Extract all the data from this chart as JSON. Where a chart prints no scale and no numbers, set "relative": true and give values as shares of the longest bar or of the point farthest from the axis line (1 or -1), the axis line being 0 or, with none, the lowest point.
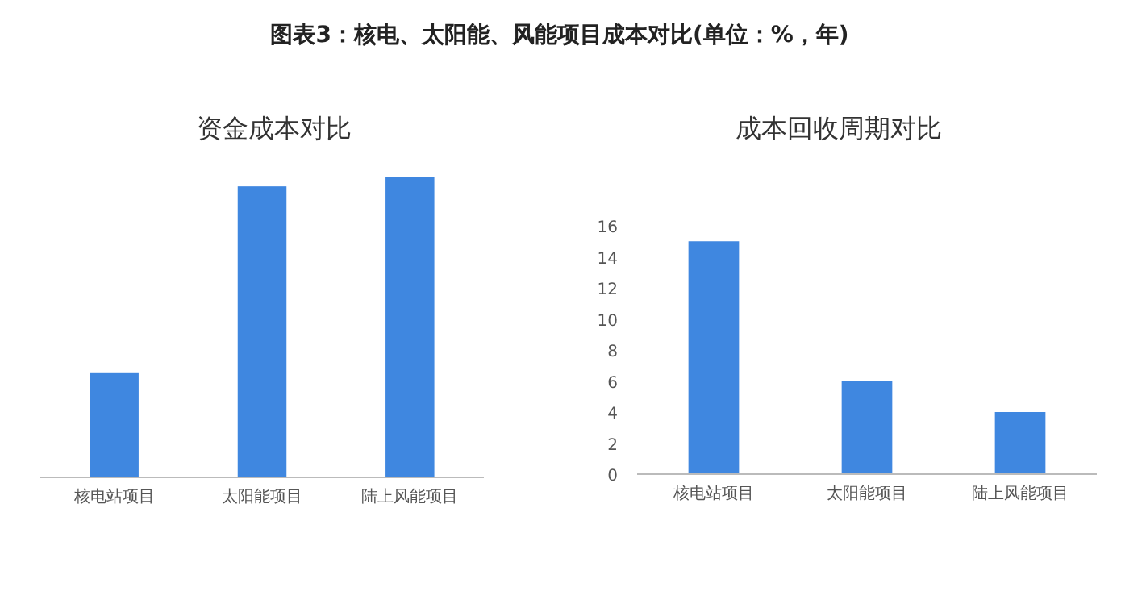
{
  "chart_data": [
    {
      "type": "bar",
      "title": "资金成本对比",
      "annotations": [
        "图表3：核电、太阳能、风能项目成本对比(单位：%，年)"
      ],
      "relative": true,
      "categories": [
        "核电站项目",
        "太阳能项目",
        "陆上风能项目"
      ],
      "values": [
        0.35,
        0.97,
        1
      ],
      "color": "#3f87e0",
      "grid": false
    },
    {
      "type": "bar",
      "title": "成本回收周期对比",
      "categories": [
        "核电站项目",
        "太阳能项目",
        "陆上风能项目"
      ],
      "values": [
        15,
        6,
        4
      ],
      "color": "#3f87e0",
      "ylim": [
        0,
        16
      ],
      "yticks": [
        0,
        2,
        4,
        6,
        8,
        10,
        12,
        14,
        16
      ],
      "grid": false
    }
  ]
}
